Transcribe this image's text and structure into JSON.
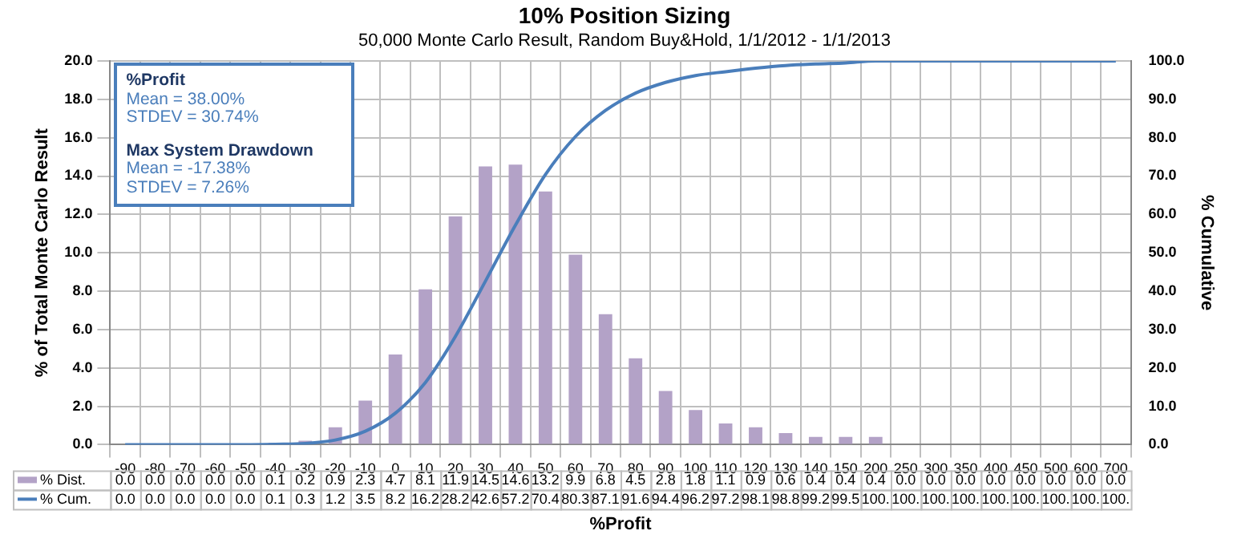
{
  "chart_data": {
    "type": "bar",
    "title": "10% Position Sizing",
    "subtitle": "50,000 Monte Carlo Result, Random Buy&Hold, 1/1/2012 - 1/1/2013",
    "xlabel": "%Profit",
    "ylabel": "% of Total Monte Carlo Result",
    "y2label": "% Cumulative",
    "categories": [
      "-90",
      "-80",
      "-70",
      "-60",
      "-50",
      "-40",
      "-30",
      "-20",
      "-10",
      "0",
      "10",
      "20",
      "30",
      "40",
      "50",
      "60",
      "70",
      "80",
      "90",
      "100",
      "110",
      "120",
      "130",
      "140",
      "150",
      "200",
      "250",
      "300",
      "350",
      "400",
      "450",
      "500",
      "600",
      "700"
    ],
    "series": [
      {
        "name": "% Dist.",
        "color": "#b3a2c7",
        "values": [
          0.0,
          0.0,
          0.0,
          0.0,
          0.0,
          0.1,
          0.2,
          0.9,
          2.3,
          4.7,
          8.1,
          11.9,
          14.5,
          14.6,
          13.2,
          9.9,
          6.8,
          4.5,
          2.8,
          1.8,
          1.1,
          0.9,
          0.6,
          0.4,
          0.4,
          0.4,
          0.0,
          0.0,
          0.0,
          0.0,
          0.0,
          0.0,
          0.0,
          0.0
        ],
        "value_labels": [
          "0.0",
          "0.0",
          "0.0",
          "0.0",
          "0.0",
          "0.1",
          "0.2",
          "0.9",
          "2.3",
          "4.7",
          "8.1",
          "11.9",
          "14.5",
          "14.6",
          "13.2",
          "9.9",
          "6.8",
          "4.5",
          "2.8",
          "1.8",
          "1.1",
          "0.9",
          "0.6",
          "0.4",
          "0.4",
          "0.4",
          "0.0",
          "0.0",
          "0.0",
          "0.0",
          "0.0",
          "0.0",
          "0.0",
          "0.0"
        ]
      },
      {
        "name": "% Cum.",
        "type": "line",
        "axis": "y2",
        "color": "#4a7ebb",
        "values": [
          0.0,
          0.0,
          0.0,
          0.0,
          0.0,
          0.1,
          0.3,
          1.2,
          3.5,
          8.2,
          16.2,
          28.2,
          42.6,
          57.2,
          70.4,
          80.3,
          87.1,
          91.6,
          94.4,
          96.2,
          97.2,
          98.1,
          98.8,
          99.2,
          99.5,
          100,
          100,
          100,
          100,
          100,
          100,
          100,
          100,
          100
        ],
        "value_labels": [
          "0.0",
          "0.0",
          "0.0",
          "0.0",
          "0.0",
          "0.1",
          "0.3",
          "1.2",
          "3.5",
          "8.2",
          "16.2",
          "28.2",
          "42.6",
          "57.2",
          "70.4",
          "80.3",
          "87.1",
          "91.6",
          "94.4",
          "96.2",
          "97.2",
          "98.1",
          "98.8",
          "99.2",
          "99.5",
          "100.",
          "100.",
          "100.",
          "100.",
          "100.",
          "100.",
          "100.",
          "100.",
          "100."
        ]
      }
    ],
    "ylim": [
      0,
      20
    ],
    "yticks": [
      {
        "value": 0,
        "label": "0.0"
      },
      {
        "value": 2,
        "label": "2.0"
      },
      {
        "value": 4,
        "label": "4.0"
      },
      {
        "value": 6,
        "label": "6.0"
      },
      {
        "value": 8,
        "label": "8.0"
      },
      {
        "value": 10,
        "label": "10.0"
      },
      {
        "value": 12,
        "label": "12.0"
      },
      {
        "value": 14,
        "label": "14.0"
      },
      {
        "value": 16,
        "label": "16.0"
      },
      {
        "value": 18,
        "label": "18.0"
      },
      {
        "value": 20,
        "label": "20.0"
      }
    ],
    "y2lim": [
      0,
      100
    ],
    "y2ticks": [
      {
        "value": 0,
        "label": "0.0"
      },
      {
        "value": 10,
        "label": "10.0"
      },
      {
        "value": 20,
        "label": "20.0"
      },
      {
        "value": 30,
        "label": "30.0"
      },
      {
        "value": 40,
        "label": "40.0"
      },
      {
        "value": 50,
        "label": "50.0"
      },
      {
        "value": 60,
        "label": "60.0"
      },
      {
        "value": 70,
        "label": "70.0"
      },
      {
        "value": 80,
        "label": "80.0"
      },
      {
        "value": 90,
        "label": "90.0"
      },
      {
        "value": 100,
        "label": "100.0"
      }
    ],
    "annotations": [
      "%Profit\nMean = 38.00%\nSTDEV = 30.74%",
      "Max System Drawdown\nMean = -17.38%\nSTDEV = 7.26%"
    ],
    "grid": true,
    "legend": "bottom",
    "marker": "none",
    "line_style": "solid"
  }
}
